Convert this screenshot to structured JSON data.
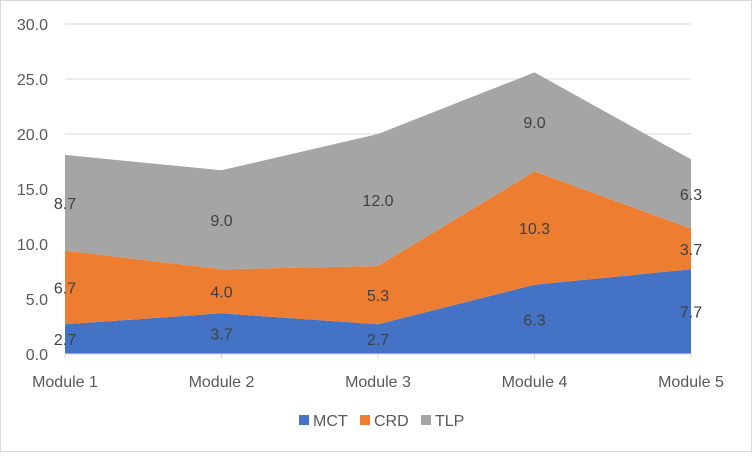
{
  "chart_data": {
    "type": "area",
    "stacked": true,
    "categories": [
      "Module 1",
      "Module 2",
      "Module 3",
      "Module 4",
      "Module 5"
    ],
    "series": [
      {
        "name": "MCT",
        "color": "#4472C4",
        "values": [
          2.7,
          3.7,
          2.7,
          6.3,
          7.7
        ]
      },
      {
        "name": "CRD",
        "color": "#ED7D31",
        "values": [
          6.7,
          4.0,
          5.3,
          10.3,
          3.7
        ]
      },
      {
        "name": "TLP",
        "color": "#A5A5A5",
        "values": [
          8.7,
          9.0,
          12.0,
          9.0,
          6.3
        ]
      }
    ],
    "ylim": [
      0,
      30
    ],
    "yticks": [
      "0.0",
      "5.0",
      "10.0",
      "15.0",
      "20.0",
      "25.0",
      "30.0"
    ],
    "grid": true,
    "legend": "bottom",
    "data_labels": true,
    "title": "",
    "xlabel": "",
    "ylabel": ""
  }
}
